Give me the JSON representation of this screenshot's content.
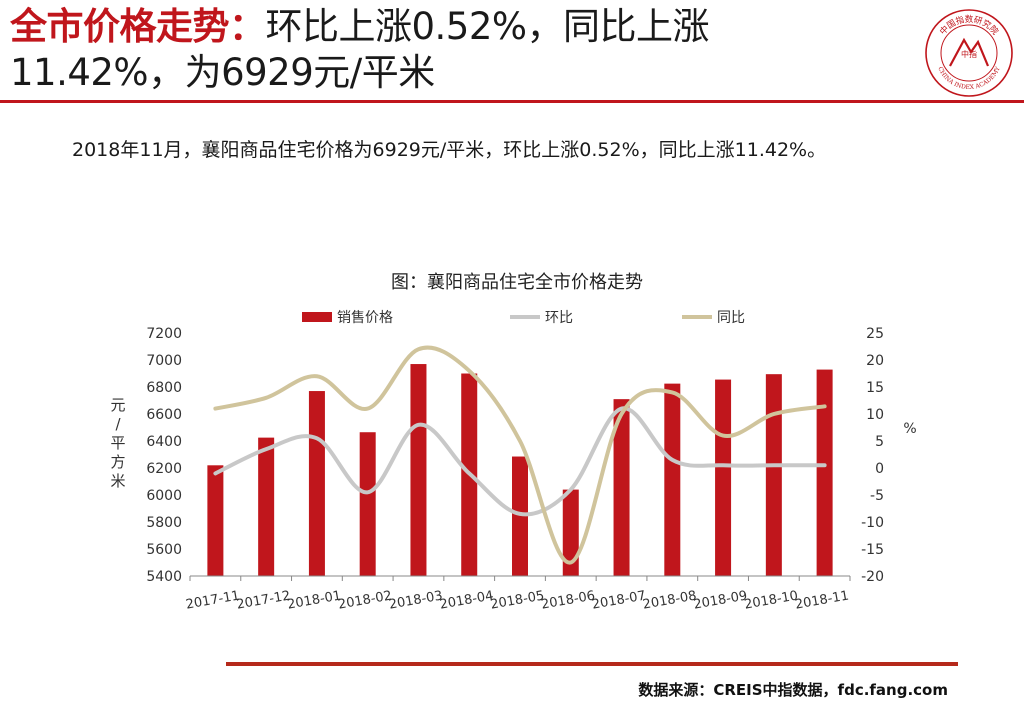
{
  "header": {
    "title_highlight": "全市价格走势：",
    "title_rest_line1": "环比上涨0.52%，同比上涨",
    "title_line2": "11.42%，为6929元/平米"
  },
  "logo": {
    "text_top": "中国指数研究院",
    "text_center": "中指",
    "text_bottom": "CHINA INDEX ACADEMY",
    "color": "#c0161c"
  },
  "summary": "2018年11月，襄阳商品住宅价格为6929元/平米，环比上涨0.52%，同比上涨11.42%。",
  "chart_data": {
    "type": "bar",
    "title": "图：襄阳商品住宅全市价格走势",
    "categories": [
      "2017-11",
      "2017-12",
      "2018-01",
      "2018-02",
      "2018-03",
      "2018-04",
      "2018-05",
      "2018-06",
      "2018-07",
      "2018-08",
      "2018-09",
      "2018-10",
      "2018-11"
    ],
    "series": [
      {
        "name": "销售价格",
        "kind": "bar",
        "axis": "left",
        "color": "#c0161c",
        "values": [
          6220,
          6425,
          6770,
          6465,
          6970,
          6900,
          6285,
          6040,
          6710,
          6825,
          6855,
          6895,
          6929
        ]
      },
      {
        "name": "环比",
        "kind": "line",
        "axis": "right",
        "color": "#c8c8c8",
        "values": [
          -1,
          3.5,
          5.5,
          -4.5,
          8,
          -1,
          -8.5,
          -4,
          11,
          1.5,
          0.5,
          0.5,
          0.52
        ]
      },
      {
        "name": "同比",
        "kind": "line",
        "axis": "right",
        "color": "#d0c49c",
        "values": [
          11,
          13,
          17,
          11,
          22,
          18,
          5,
          -17.5,
          10,
          14,
          6,
          10,
          11.42
        ]
      }
    ],
    "left_axis": {
      "label": "元/平方米",
      "ylim": [
        5400,
        7200
      ],
      "ticks": [
        5400,
        5600,
        5800,
        6000,
        6200,
        6400,
        6600,
        6800,
        7000,
        7200
      ]
    },
    "right_axis": {
      "label": "%",
      "ylim": [
        -20,
        25
      ],
      "ticks": [
        -20,
        -15,
        -10,
        -5,
        0,
        5,
        10,
        15,
        20,
        25
      ]
    },
    "grid": false,
    "legend": "top"
  },
  "source": "数据来源：CREIS中指数据，fdc.fang.com"
}
